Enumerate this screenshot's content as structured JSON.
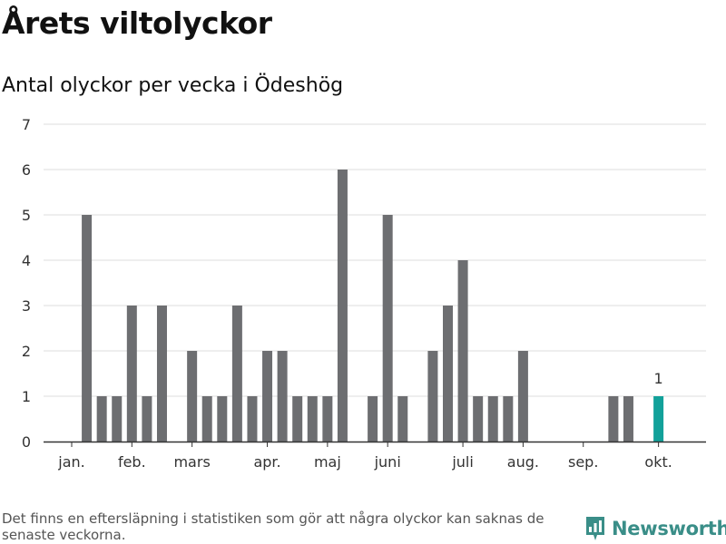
{
  "title": "Årets viltolyckor",
  "subtitle": "Antal olyckor per vecka i Ödeshög",
  "footnote": "Det finns en eftersläpning i statistiken som gör att några olyckor kan saknas de senaste veckorna.",
  "brand": "Newsworthy",
  "colors": {
    "bar": "#6d6e71",
    "highlight": "#12a19a",
    "grid": "#dddddd",
    "axis": "#333333",
    "brand": "#3a8e88"
  },
  "chart_data": {
    "type": "bar",
    "title": "Antal olyckor per vecka i Ödeshög",
    "xlabel": "",
    "ylabel": "",
    "ylim": [
      0,
      7
    ],
    "yticks": [
      0,
      1,
      2,
      3,
      4,
      5,
      6,
      7
    ],
    "grid": true,
    "weeks": [
      1,
      2,
      3,
      4,
      5,
      6,
      7,
      8,
      9,
      10,
      11,
      12,
      13,
      14,
      15,
      16,
      17,
      18,
      19,
      20,
      21,
      22,
      23,
      24,
      25,
      26,
      27,
      28,
      29,
      30,
      31,
      32,
      33,
      34,
      35,
      36,
      37,
      38,
      39,
      40
    ],
    "values": [
      0,
      5,
      1,
      1,
      3,
      1,
      3,
      0,
      2,
      1,
      1,
      3,
      1,
      2,
      2,
      1,
      1,
      1,
      6,
      0,
      1,
      5,
      1,
      0,
      2,
      3,
      4,
      1,
      1,
      1,
      2,
      0,
      0,
      0,
      0,
      0,
      1,
      1,
      0,
      1
    ],
    "month_labels": [
      {
        "label": "jan.",
        "week": 1
      },
      {
        "label": "feb.",
        "week": 5
      },
      {
        "label": "mars",
        "week": 9
      },
      {
        "label": "apr.",
        "week": 14
      },
      {
        "label": "maj",
        "week": 18
      },
      {
        "label": "juni",
        "week": 22
      },
      {
        "label": "juli",
        "week": 27
      },
      {
        "label": "aug.",
        "week": 31
      },
      {
        "label": "sep.",
        "week": 35
      },
      {
        "label": "okt.",
        "week": 40
      }
    ],
    "highlight_week": 40,
    "highlight_label": "1"
  }
}
